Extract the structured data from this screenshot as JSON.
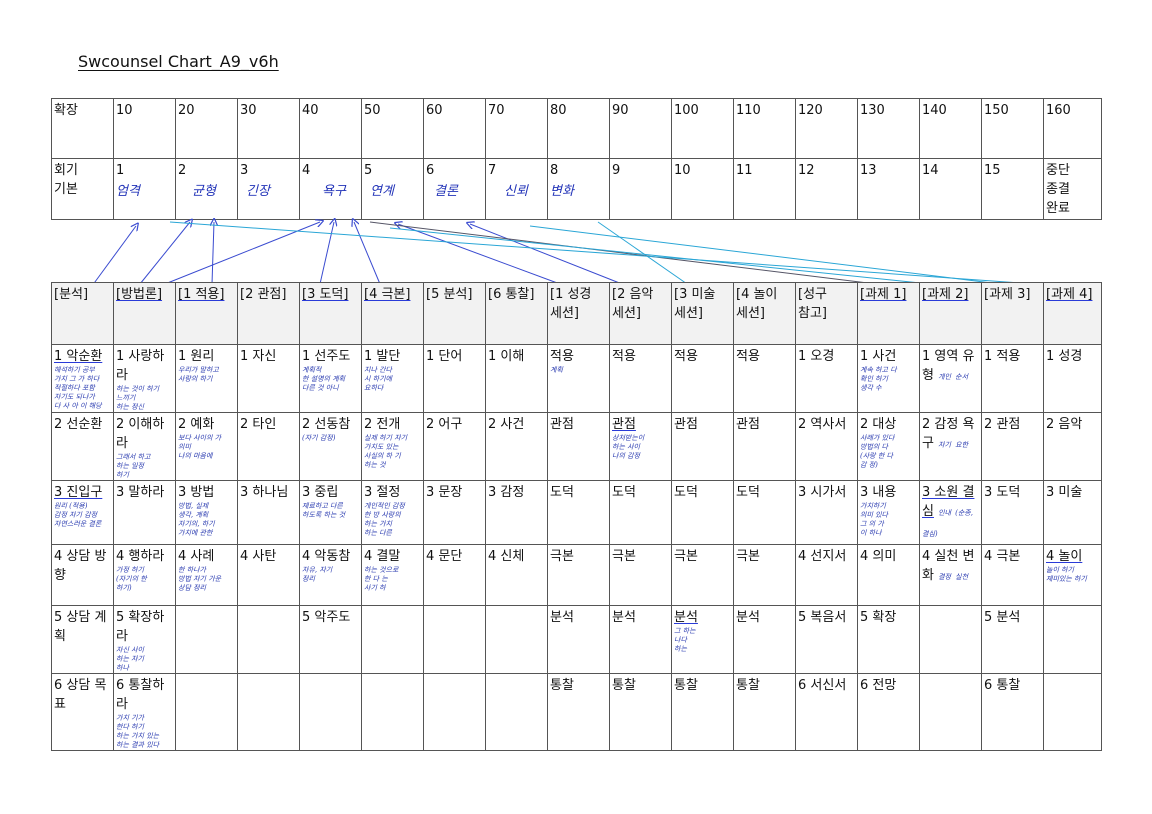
{
  "title": "Swcounsel Chart_A9_v6h",
  "top": {
    "row1": [
      "확장",
      "10",
      "20",
      "30",
      "40",
      "50",
      "60",
      "70",
      "80",
      "90",
      "100",
      "110",
      "120",
      "130",
      "140",
      "150",
      "160"
    ],
    "row2_header": [
      "회기",
      "기본"
    ],
    "row2": [
      "1",
      "2",
      "3",
      "4",
      "5",
      "6",
      "7",
      "8",
      "9",
      "10",
      "11",
      "12",
      "13",
      "14",
      "15"
    ],
    "row2_last": [
      "중단",
      "종결",
      "완료"
    ],
    "handwriting": [
      "엄격",
      "균형",
      "긴장",
      "욕구",
      "연계",
      "결론",
      "신뢰",
      "변화"
    ]
  },
  "header": [
    "[분석]",
    "[방법론]",
    "[1 적용]",
    "[2 관점]",
    "[3 도덕]",
    "[4 극본]",
    "[5 분석]",
    "[6 통찰]",
    "[1 성경\n세션]",
    "[2 음악\n세션]",
    "[3 미술\n세션]",
    "[4 놀이\n세션]",
    "[성구\n참고]",
    "[과제 1]",
    "[과제 2]",
    "[과제 3]",
    "[과제 4]"
  ],
  "rows": [
    [
      "1 악순환",
      "1 사랑하라",
      "1 원리",
      "1 자신",
      "1 선주도",
      "1 발단",
      "1 단어",
      "1 이해",
      "적용",
      "적용",
      "적용",
      "적용",
      "1 오경",
      "1 사건",
      "1 영역 유형",
      "1 적용",
      "1 성경"
    ],
    [
      "2 선순환",
      "2 이해하라",
      "2 예화",
      "2 타인",
      "2 선동참",
      "2 전개",
      "2 어구",
      "2 사건",
      "관점",
      "관점",
      "관점",
      "관점",
      "2 역사서",
      "2 대상",
      "2 감정 욕구",
      "2 관점",
      "2 음악"
    ],
    [
      "3 진입구",
      "3 말하라",
      "3 방법",
      "3 하나님",
      "3 중립",
      "3 절정",
      "3 문장",
      "3 감정",
      "도덕",
      "도덕",
      "도덕",
      "도덕",
      "3 시가서",
      "3 내용",
      "3 소원 결심",
      "3 도덕",
      "3 미술"
    ],
    [
      "4 상담 방향",
      "4 행하라",
      "4 사례",
      "4 사탄",
      "4 악동참",
      "4 결말",
      "4 문단",
      "4 신체",
      "극본",
      "극본",
      "극본",
      "극본",
      "4 선지서",
      "4 의미",
      "4 실천 변화",
      "4 극본",
      "4 놀이"
    ],
    [
      "5 상담 계획",
      "5 확장하라",
      "",
      "",
      "5 악주도",
      "",
      "",
      "",
      "분석",
      "분석",
      "분석",
      "분석",
      "5 복음서",
      "5 확장",
      "",
      "5 분석",
      ""
    ],
    [
      "6 상담 목표",
      "6 통찰하라",
      "",
      "",
      "",
      "",
      "",
      "",
      "통찰",
      "통찰",
      "통찰",
      "통찰",
      "6 서신서",
      "6 전망",
      "",
      "6 통찰",
      ""
    ]
  ],
  "notes": {
    "r0c0": "해석하기 공부\n가치 그 가 하다\n적절하다 포함\n자기도 되나가\n다 사 아 이 해당",
    "r0c1": "하는 것이 하기\n느끼기\n하는 정신",
    "r0c2": "우리가 말하고\n사랑의 하기",
    "r0c4": "계획적\n한 설명의 계획\n다른 것 아니",
    "r0c5": "지나 간다\n시 하기에\n요하다",
    "r0c8": "계획",
    "r0c13": "계속 하고 다\n확인 하기\n생각 수",
    "r0c14a": "개인",
    "r0c14b": "순서",
    "r1c1": "그래서 하고\n하는 일정\n하기",
    "r1c2": "보다 사이의 가\n의미\n나의 마음에",
    "r1c4": "(자기 감정)",
    "r1c5": "실제 하기 자기\n가치도 있는\n사실의 하 기\n하는 것",
    "r1c9": "상처받는이\n하는 사이\n나의 감정",
    "r1c13": "사례가 있다\n방법의 다\n(사랑 한 다\n감 정)",
    "r1c14a": "자기",
    "r1c14b": "요한",
    "r2c0": "원리 (적용)\n감정 자기 감정\n자연스러운 결론",
    "r2c2": "방법, 실제\n생각, 계획\n자기의, 하기\n가치에 관한",
    "r2c4": "재료하고 다른\n하도록 하는 것",
    "r2c5": "개인적인 감정\n한 방 사랑의\n하는 가치\n하는 다른",
    "r2c13": "가치하기\n의미 있다\n그 의 가\n이 하나",
    "r2c14a": "인내",
    "r2c14b": "(순종, 결심)",
    "r3c1": "가정 하기\n(자기의 한\n하기)",
    "r3c2": "한 하나가\n방법 자기 가운\n상담 정리",
    "r3c4": "자유, 자기\n정리",
    "r3c5": "하는 것으로\n한 다 는\n사기 하",
    "r3c14a": "결정",
    "r3c14b": "실천",
    "r3c16": "놀이 하기\n재미있는 하기",
    "r4c1": "자신 사이\n하는 자기\n하나",
    "r4c10": "그 하는\n나다\n하는",
    "r5c1": "가치 기가\n한다 하기\n하는 가치 있는\n하는 결과 있다"
  },
  "colors": {
    "ink_blue": "#2233b8",
    "line_blue": "#3a4bd0",
    "line_cyan": "#2aa6d6",
    "line_gray": "#555566",
    "header_bg": "#f2f2f2"
  }
}
